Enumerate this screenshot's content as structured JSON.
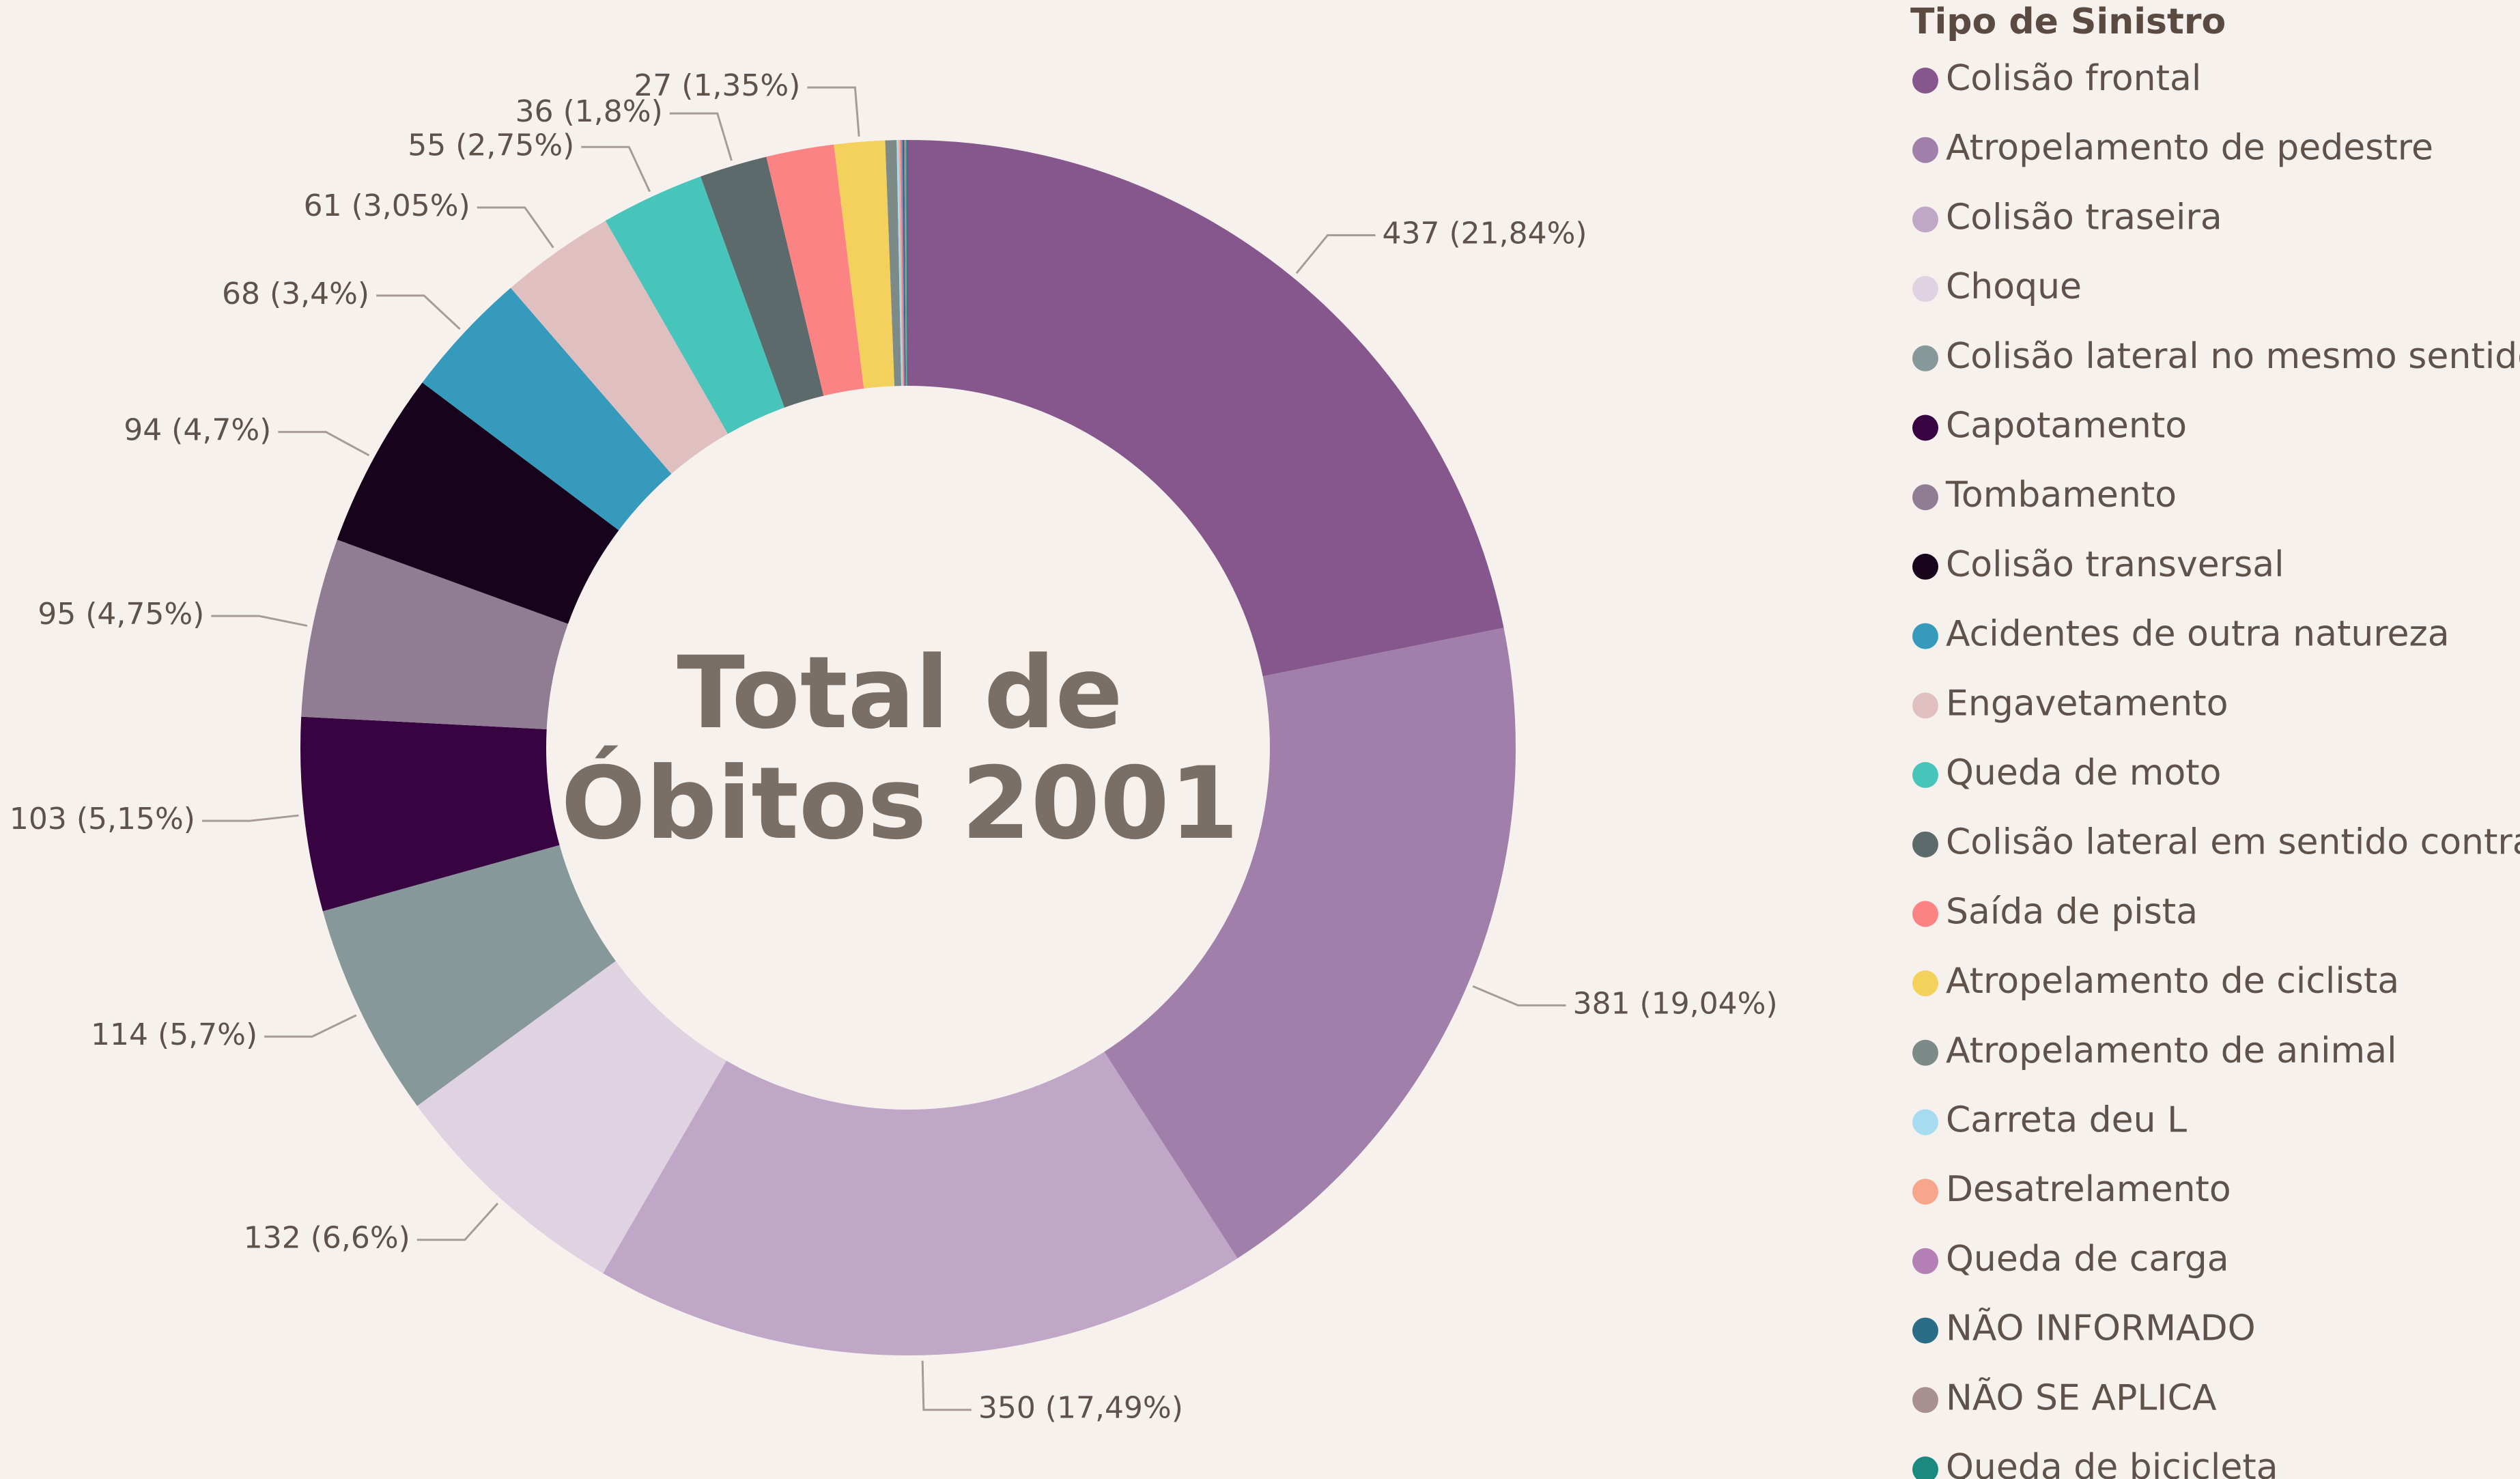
{
  "chart_data": {
    "type": "donut",
    "center_text": "Total de Óbitos 2001",
    "legend_title": "Tipo de Sinistro",
    "series": [
      {
        "name": "Colisão frontal",
        "color": "#85578c",
        "values": [
          437
        ],
        "value_labels": [
          "437 (21,84%)"
        ]
      },
      {
        "name": "Atropelamento de pedestre",
        "color": "#a07faa",
        "values": [
          381
        ],
        "value_labels": [
          "381 (19,04%)"
        ]
      },
      {
        "name": "Colisão traseira",
        "color": "#c0a6c7",
        "values": [
          350
        ],
        "value_labels": [
          "350 (17,49%)"
        ]
      },
      {
        "name": "Choque",
        "color": "#dfd3e1",
        "values": [
          132
        ],
        "value_labels": [
          "132 (6,6%)"
        ]
      },
      {
        "name": "Colisão lateral no mesmo sentido",
        "color": "#87989a",
        "values": [
          114
        ],
        "value_labels": [
          "114 (5,7%)"
        ]
      },
      {
        "name": "Capotamento",
        "color": "#380341",
        "values": [
          103
        ],
        "value_labels": [
          "103 (5,15%)"
        ]
      },
      {
        "name": "Tombamento",
        "color": "#917d93",
        "values": [
          95
        ],
        "value_labels": [
          "95 (4,75%)"
        ]
      },
      {
        "name": "Colisão transversal",
        "color": "#17041c",
        "values": [
          94
        ],
        "value_labels": [
          "94 (4,7%)"
        ]
      },
      {
        "name": "Acidentes de outra natureza",
        "color": "#359abb",
        "values": [
          68
        ],
        "value_labels": [
          "68 (3,4%)"
        ]
      },
      {
        "name": "Engavetamento",
        "color": "#e0bfc1",
        "values": [
          61
        ],
        "value_labels": [
          "61 (3,05%)"
        ]
      },
      {
        "name": "Queda de moto",
        "color": "#47c5bb",
        "values": [
          55
        ],
        "value_labels": [
          "55 (2,75%)"
        ]
      },
      {
        "name": "Colisão lateral em sentido contrário",
        "color": "#5d6a6b",
        "values": [
          36
        ],
        "value_labels": [
          "36 (1,8%)"
        ]
      },
      {
        "name": "Saída de pista",
        "color": "#fb8383",
        "values": [
          36
        ],
        "value_labels": [
          null
        ]
      },
      {
        "name": "Atropelamento de ciclista",
        "color": "#f3d15c",
        "values": [
          27
        ],
        "value_labels": [
          "27 (1,35%)"
        ]
      },
      {
        "name": "Atropelamento de animal",
        "color": "#7c8a88",
        "values": [
          6
        ],
        "value_labels": [
          null
        ]
      },
      {
        "name": "Carreta deu L",
        "color": "#a5dcef",
        "values": [
          1
        ],
        "value_labels": [
          null
        ]
      },
      {
        "name": "Desatrelamento",
        "color": "#f7a68b",
        "values": [
          1
        ],
        "value_labels": [
          null
        ]
      },
      {
        "name": "Queda de carga",
        "color": "#b37fb5",
        "values": [
          1
        ],
        "value_labels": [
          null
        ]
      },
      {
        "name": "NÃO INFORMADO",
        "color": "#2b6d86",
        "values": [
          1
        ],
        "value_labels": [
          null
        ]
      },
      {
        "name": "NÃO SE APLICA",
        "color": "#a89090",
        "values": [
          1
        ],
        "value_labels": [
          null
        ]
      },
      {
        "name": "Queda de bicicleta",
        "color": "#1a8a80",
        "values": [
          1
        ],
        "value_labels": [
          null
        ]
      }
    ]
  }
}
